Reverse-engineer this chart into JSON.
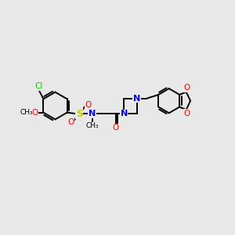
{
  "background_color": "#e8e8e8",
  "bond_color": "#000000",
  "bond_width": 1.4,
  "colors": {
    "C": "#000000",
    "N": "#0000ff",
    "O": "#ff0000",
    "S": "#cccc00",
    "Cl": "#00cc00",
    "H": "#000000"
  },
  "figsize": [
    3.0,
    3.0
  ],
  "dpi": 100,
  "xlim": [
    0,
    10
  ],
  "ylim": [
    0,
    10
  ]
}
